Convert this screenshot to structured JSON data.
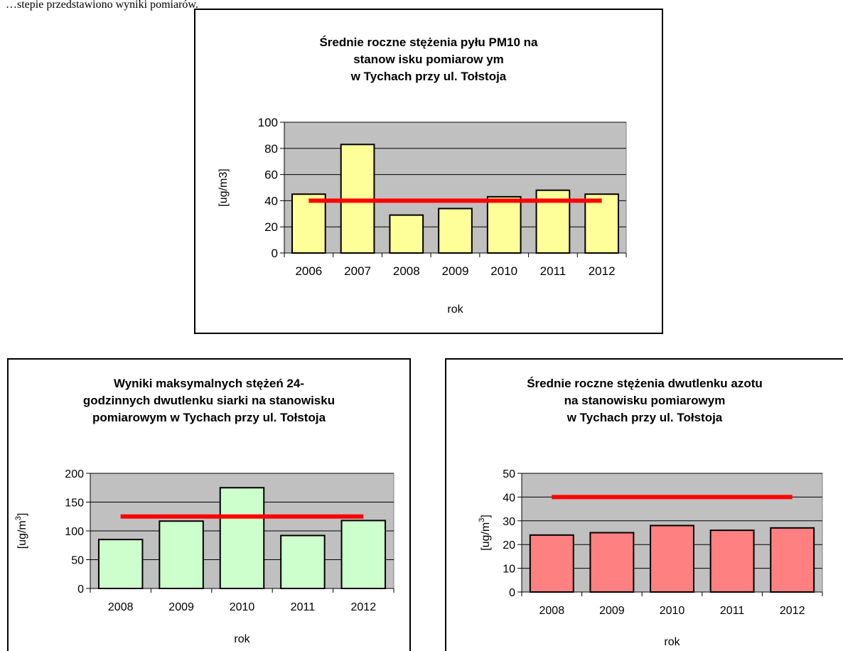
{
  "page": {
    "intro_text": "…stepie przedstawiono wyniki pomiarów."
  },
  "charts": {
    "pm10": {
      "title_lines": [
        "Średnie roczne stężenia pyłu PM10 na",
        "stanow isku pomiarow ym",
        "w Tychach przy ul. Tołstoja"
      ]
    },
    "so2": {
      "title_lines": [
        "Wyniki maksymalnych stężeń 24-",
        "godzinnych dwutlenku siarki na stanowisku",
        "pomiarowym w Tychach przy ul. Tołstoja"
      ]
    },
    "no2": {
      "title_lines": [
        "Średnie roczne stężenia dwutlenku azotu",
        "na stanowisku pomiarowym",
        "w Tychach przy ul. Tołstoja"
      ]
    }
  },
  "chart_data": [
    {
      "id": "pm10",
      "type": "bar",
      "title": "Średnie roczne stężenia pyłu PM10 na stanowisku pomiarowym w Tychach przy ul. Tołstoja",
      "categories": [
        "2006",
        "2007",
        "2008",
        "2009",
        "2010",
        "2011",
        "2012"
      ],
      "values": [
        45,
        83,
        29,
        34,
        43,
        48,
        45
      ],
      "limit_line": 40,
      "xlabel": "rok",
      "ylabel": "[ug/m3]",
      "ylim": [
        0,
        100
      ],
      "yticks": [
        "0",
        "20",
        "40",
        "60",
        "80",
        "100"
      ],
      "grid": true,
      "legend": "none",
      "colors": {
        "bar": "#ffff99",
        "plot_bg": "#c0c0c0",
        "limit_line": "#ff0000"
      }
    },
    {
      "id": "so2",
      "type": "bar",
      "title": "Wyniki maksymalnych stężeń 24-godzinnych dwutlenku siarki na stanowisku pomiarowym w Tychach przy ul. Tołstoja",
      "categories": [
        "2008",
        "2009",
        "2010",
        "2011",
        "2012"
      ],
      "values": [
        85,
        117,
        175,
        92,
        118
      ],
      "limit_line": 125,
      "xlabel": "rok",
      "ylabel_main": "[ug/m",
      "ylabel_sup": "3",
      "ylabel_end": "]",
      "ylim": [
        0,
        200
      ],
      "yticks": [
        "0",
        "50",
        "100",
        "150",
        "200"
      ],
      "grid": true,
      "legend": "none",
      "colors": {
        "bar": "#ccffcc",
        "plot_bg": "#c0c0c0",
        "limit_line": "#ff0000"
      }
    },
    {
      "id": "no2",
      "type": "bar",
      "title": "Średnie roczne stężenia dwutlenku azotu na stanowisku pomiarowym w Tychach przy ul. Tołstoja",
      "categories": [
        "2008",
        "2009",
        "2010",
        "2011",
        "2012"
      ],
      "values": [
        24,
        25,
        28,
        26,
        27
      ],
      "limit_line": 40,
      "xlabel": "rok",
      "ylabel_main": "[ug/m",
      "ylabel_sup": "3",
      "ylabel_end": "]",
      "ylim": [
        0,
        50
      ],
      "yticks": [
        "0",
        "10",
        "20",
        "30",
        "40",
        "50"
      ],
      "grid": true,
      "legend": "none",
      "colors": {
        "bar": "#ff8080",
        "plot_bg": "#c0c0c0",
        "limit_line": "#ff0000"
      }
    }
  ]
}
